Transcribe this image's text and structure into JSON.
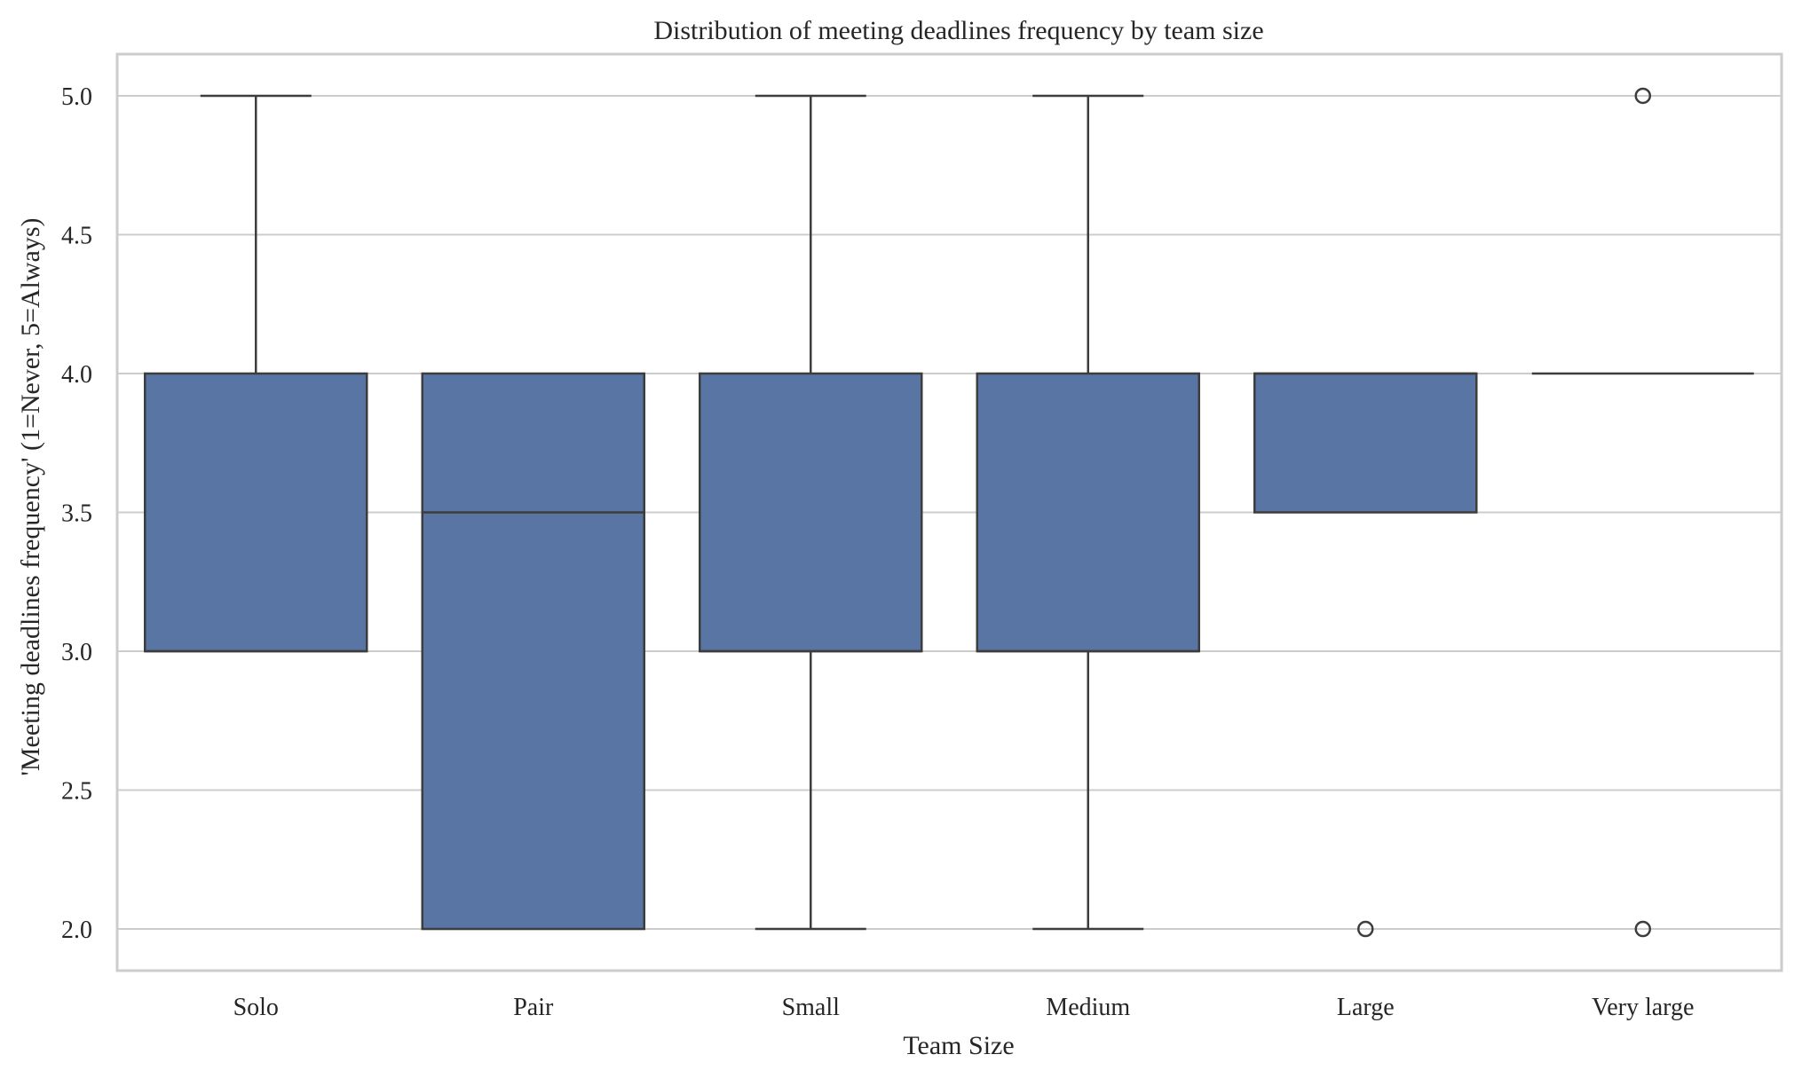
{
  "chart_data": {
    "type": "box",
    "title": "Distribution of meeting deadlines frequency by team size",
    "xlabel": "Team Size",
    "ylabel": "'Meeting deadlines frequency' (1=Never, 5=Always)",
    "ylim": [
      1.85,
      5.15
    ],
    "yticks": [
      "2.0",
      "2.5",
      "3.0",
      "3.5",
      "4.0",
      "4.5",
      "5.0"
    ],
    "grid": true,
    "box_color": "#5875a4",
    "categories": [
      "Solo",
      "Pair",
      "Small",
      "Medium",
      "Large",
      "Very large"
    ],
    "boxes": [
      {
        "category": "Solo",
        "whisker_low": 3.0,
        "q1": 3.0,
        "median": 3.0,
        "q3": 4.0,
        "whisker_high": 5.0,
        "outliers": []
      },
      {
        "category": "Pair",
        "whisker_low": 2.0,
        "q1": 2.0,
        "median": 3.5,
        "q3": 4.0,
        "whisker_high": 4.0,
        "outliers": []
      },
      {
        "category": "Small",
        "whisker_low": 2.0,
        "q1": 3.0,
        "median": 3.0,
        "q3": 4.0,
        "whisker_high": 5.0,
        "outliers": []
      },
      {
        "category": "Medium",
        "whisker_low": 2.0,
        "q1": 3.0,
        "median": 3.0,
        "q3": 4.0,
        "whisker_high": 5.0,
        "outliers": []
      },
      {
        "category": "Large",
        "whisker_low": 3.5,
        "q1": 3.5,
        "median": 4.0,
        "q3": 4.0,
        "whisker_high": 4.0,
        "outliers": [
          2.0
        ]
      },
      {
        "category": "Very large",
        "whisker_low": 4.0,
        "q1": 4.0,
        "median": 4.0,
        "q3": 4.0,
        "whisker_high": 4.0,
        "outliers": [
          5.0,
          2.0
        ]
      }
    ]
  }
}
